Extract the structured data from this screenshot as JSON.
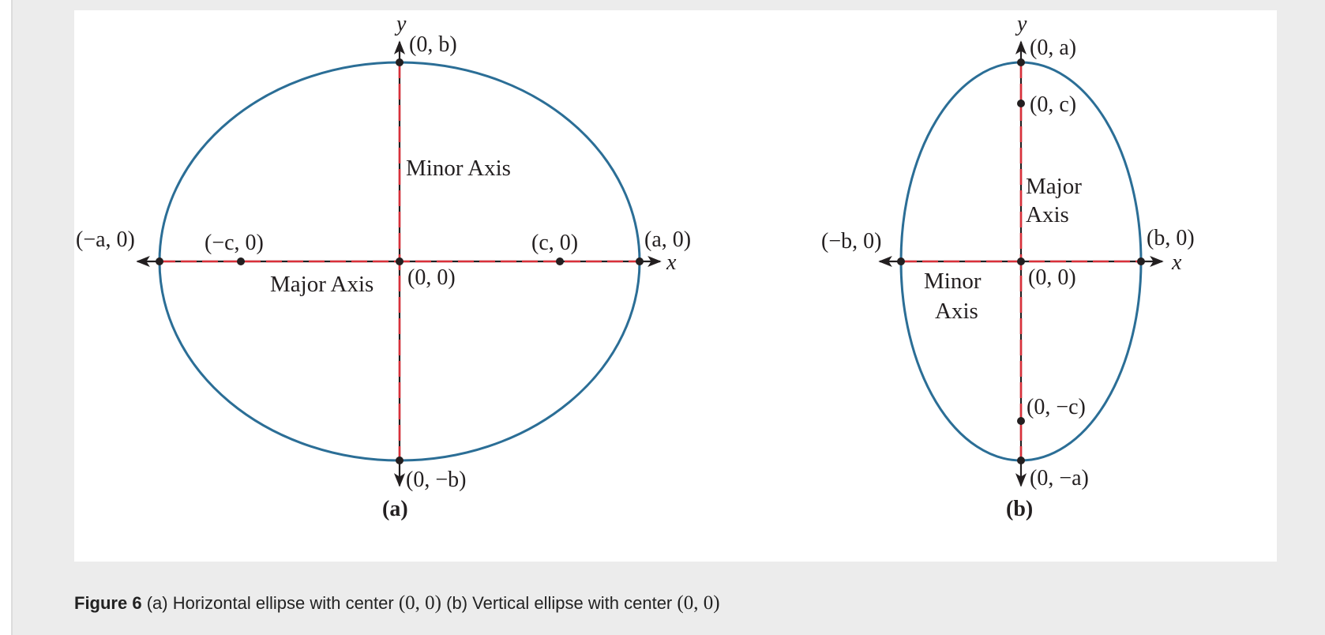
{
  "figure": {
    "caption": {
      "label": "Figure 6",
      "part_a_text": "(a) Horizontal ellipse with center",
      "part_a_math": "(0, 0)",
      "part_b_text": "(b) Vertical ellipse with center",
      "part_b_math": "(0, 0)"
    },
    "colors": {
      "ellipse": "#2b6e96",
      "axis_dash": "#d9303a",
      "axis_line": "#231f20",
      "panel_background": "#ececec",
      "figure_background": "#ffffff"
    },
    "panel_a": {
      "tag": "(a)",
      "axis_x": "x",
      "axis_y": "y",
      "major_axis_label": "Major Axis",
      "minor_axis_label": "Minor Axis",
      "points": {
        "top": "(0, b)",
        "bottom": "(0, −b)",
        "left_vertex": "(−a, 0)",
        "right_vertex": "(a, 0)",
        "left_focus": "(−c, 0)",
        "right_focus": "(c, 0)",
        "center": "(0, 0)"
      }
    },
    "panel_b": {
      "tag": "(b)",
      "axis_x": "x",
      "axis_y": "y",
      "major_axis_label_line1": "Major",
      "major_axis_label_line2": "Axis",
      "minor_axis_label_line1": "Minor",
      "minor_axis_label_line2": "Axis",
      "points": {
        "top_vertex": "(0, a)",
        "bottom_vertex": "(0, −a)",
        "top_focus": "(0, c)",
        "bottom_focus": "(0, −c)",
        "left": "(−b, 0)",
        "right": "(b, 0)",
        "center": "(0, 0)"
      }
    }
  }
}
